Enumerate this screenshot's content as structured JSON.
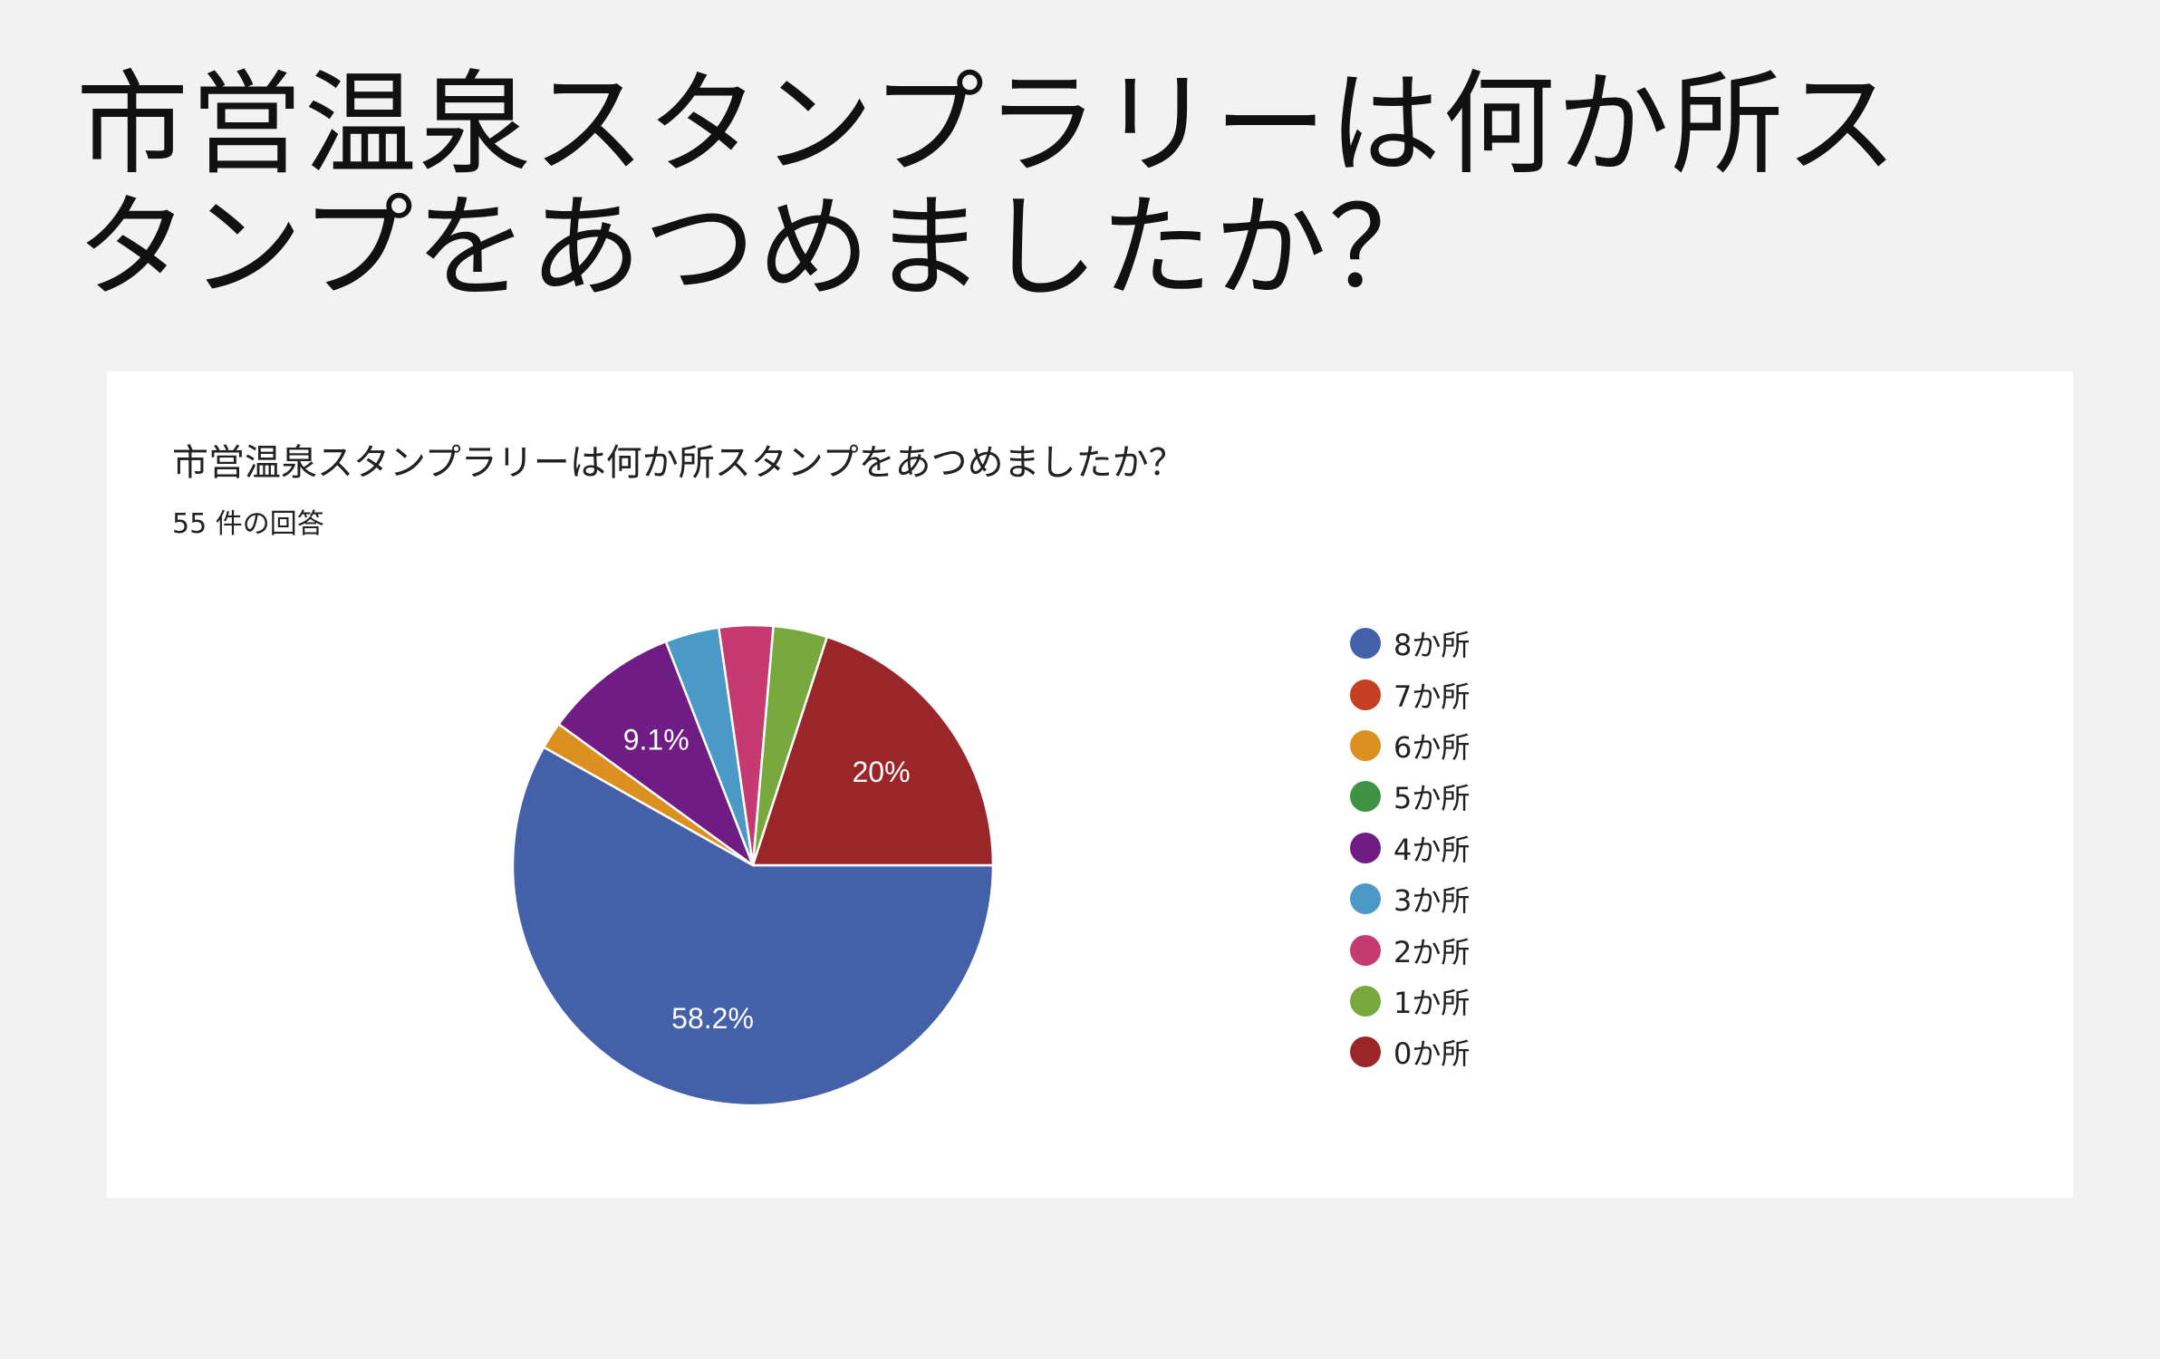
{
  "slide": {
    "title_line1": "市営温泉スタンプラリーは何か所ス",
    "title_line2": "タンプをあつめましたか？"
  },
  "chart_data": {
    "type": "pie",
    "title": "市営温泉スタンプラリーは何か所スタンプをあつめましたか？",
    "subtitle": "55 件の回答",
    "legend_position": "right",
    "slices": [
      {
        "label": "8か所",
        "count": 32,
        "percent_label": "58.2%",
        "color": "#4360a8"
      },
      {
        "label": "7か所",
        "count": 0,
        "percent_label": "",
        "color": "#c63e24"
      },
      {
        "label": "6か所",
        "count": 1,
        "percent_label": "",
        "color": "#dc9020"
      },
      {
        "label": "5か所",
        "count": 0,
        "percent_label": "",
        "color": "#3f9246"
      },
      {
        "label": "4か所",
        "count": 5,
        "percent_label": "9.1%",
        "color": "#701c85"
      },
      {
        "label": "3か所",
        "count": 2,
        "percent_label": "",
        "color": "#4a99c7"
      },
      {
        "label": "2か所",
        "count": 2,
        "percent_label": "",
        "color": "#c53a70"
      },
      {
        "label": "1か所",
        "count": 2,
        "percent_label": "",
        "color": "#79a83e"
      },
      {
        "label": "0か所",
        "count": 11,
        "percent_label": "20%",
        "color": "#9b2629"
      }
    ]
  }
}
